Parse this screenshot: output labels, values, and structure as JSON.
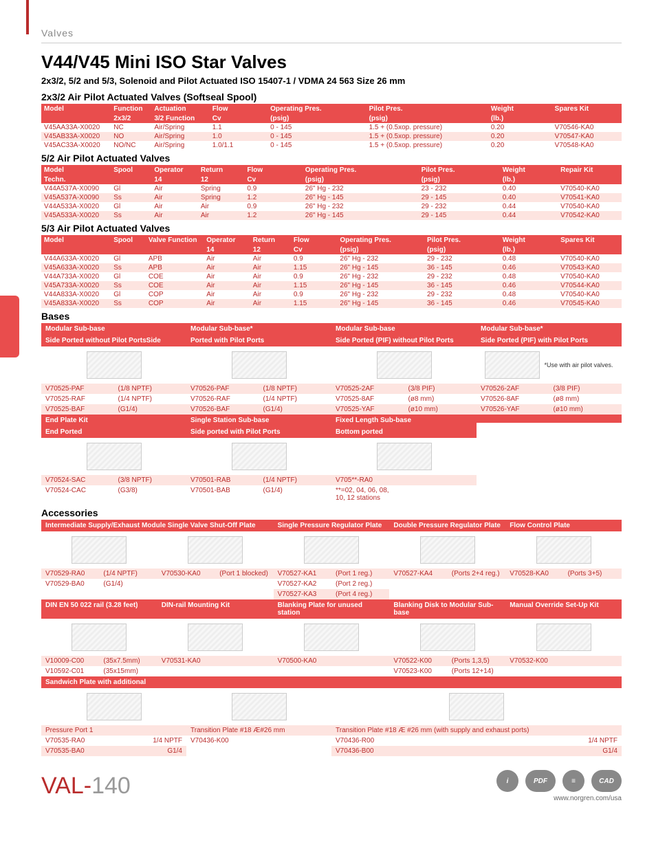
{
  "breadcrumb": "Valves",
  "title": "V44/V45 Mini ISO Star Valves",
  "subtitle": "2x3/2, 5/2 and 5/3, Solenoid and Pilot Actuated ISO 15407-1 / VDMA 24 563 Size 26 mm",
  "sections": {
    "s1": {
      "title": "2x3/2 Air Pilot Actuated Valves (Softseal Spool)",
      "headers1": [
        "Model",
        "Function",
        "Actuation",
        "Flow",
        "Operating Pres.",
        "Pilot Pres.",
        "Weight",
        "Spares Kit"
      ],
      "headers2": [
        "",
        "2x3/2",
        "3/2 Function",
        "Cv",
        "(psig)",
        "(psig)",
        "(lb.)",
        ""
      ],
      "rows": [
        [
          "V45AA33A-X0020",
          "NC",
          "Air/Spring",
          "1.1",
          "0 - 145",
          "1.5 + (0.5xop. pressure)",
          "0.20",
          "V70546-KA0"
        ],
        [
          "V45AB33A-X0020",
          "NO",
          "Air/Spring",
          "1.0",
          "0 - 145",
          "1.5 + (0.5xop. pressure)",
          "0.20",
          "V70547-KA0"
        ],
        [
          "V45AC33A-X0020",
          "NO/NC",
          "Air/Spring",
          "1.0/1.1",
          "0 - 145",
          "1.5 + (0.5xop. pressure)",
          "0.20",
          "V70548-KA0"
        ]
      ],
      "widths": [
        "12%",
        "7%",
        "10%",
        "10%",
        "17%",
        "21%",
        "11%",
        "12%"
      ]
    },
    "s2": {
      "title": "5/2 Air Pilot Actuated Valves",
      "headers1": [
        "Model",
        "Spool",
        "Operator",
        "Return",
        "Flow",
        "Operating Pres.",
        "Pilot Pres.",
        "Weight",
        "Repair Kit"
      ],
      "headers2": [
        "Techn.",
        "",
        "14",
        "12",
        "Cv",
        "(psig)",
        "(psig)",
        "(lb.)",
        ""
      ],
      "rows": [
        [
          "V44A537A-X0090",
          "Gl",
          "Air",
          "Spring",
          "0.9",
          "26\" Hg - 232",
          "23 - 232",
          "0.40",
          "V70540-KA0"
        ],
        [
          "V45A537A-X0090",
          "Ss",
          "Air",
          "Spring",
          "1.2",
          "26\" Hg - 145",
          "29 - 145",
          "0.40",
          "V70541-KA0"
        ],
        [
          "V44A533A-X0020",
          "Gl",
          "Air",
          "Air",
          "0.9",
          "26\" Hg - 232",
          "29 - 232",
          "0.44",
          "V70540-KA0"
        ],
        [
          "V45A533A-X0020",
          "Ss",
          "Air",
          "Air",
          "1.2",
          "26\" Hg - 145",
          "29 - 145",
          "0.44",
          "V70542-KA0"
        ]
      ],
      "widths": [
        "12%",
        "7%",
        "8%",
        "8%",
        "10%",
        "20%",
        "14%",
        "10%",
        "11%"
      ]
    },
    "s3": {
      "title": "5/3 Air Pilot Actuated Valves",
      "headers1": [
        "Model",
        "Spool",
        "Valve Function",
        "Operator",
        "Return",
        "Flow",
        "Operating Pres.",
        "Pilot Pres.",
        "Weight",
        "Spares Kit"
      ],
      "headers2": [
        "",
        "",
        "",
        "14",
        "12",
        "Cv",
        "(psig)",
        "(psig)",
        "(lb.)",
        ""
      ],
      "rows": [
        [
          "V44A633A-X0020",
          "Gl",
          "APB",
          "Air",
          "Air",
          "0.9",
          "26\" Hg - 232",
          "29 - 232",
          "0.48",
          "V70540-KA0"
        ],
        [
          "V45A633A-X0020",
          "Ss",
          "APB",
          "Air",
          "Air",
          "1.15",
          "26\" Hg - 145",
          "36 - 145",
          "0.46",
          "V70543-KA0"
        ],
        [
          "V44A733A-X0020",
          "Gl",
          "COE",
          "Air",
          "Air",
          "0.9",
          "26\" Hg - 232",
          "29 - 232",
          "0.48",
          "V70540-KA0"
        ],
        [
          "V45A733A-X0020",
          "Ss",
          "COE",
          "Air",
          "Air",
          "1.15",
          "26\" Hg - 145",
          "36 - 145",
          "0.46",
          "V70544-KA0"
        ],
        [
          "V44A833A-X0020",
          "Gl",
          "COP",
          "Air",
          "Air",
          "0.9",
          "26\" Hg - 232",
          "29 - 232",
          "0.48",
          "V70540-KA0"
        ],
        [
          "V45A833A-X0020",
          "Ss",
          "COP",
          "Air",
          "Air",
          "1.15",
          "26\" Hg - 145",
          "36 - 145",
          "0.46",
          "V70545-KA0"
        ]
      ],
      "widths": [
        "12%",
        "6%",
        "10%",
        "8%",
        "7%",
        "8%",
        "15%",
        "13%",
        "10%",
        "11%"
      ]
    }
  },
  "bases": {
    "title": "Bases",
    "row1": {
      "cols": [
        {
          "h1": "Modular Sub-base",
          "h2": "Side Ported without Pilot PortsSide",
          "items": [
            [
              "V70525-PAF",
              "(1/8 NPTF)"
            ],
            [
              "V70525-RAF",
              "(1/4 NPTF)"
            ],
            [
              "V70525-BAF",
              "(G1/4)"
            ]
          ]
        },
        {
          "h1": "Modular Sub-base*",
          "h2": "Ported with Pilot Ports",
          "items": [
            [
              "V70526-PAF",
              "(1/8 NPTF)"
            ],
            [
              "V70526-RAF",
              "(1/4 NPTF)"
            ],
            [
              "V70526-BAF",
              "(G1/4)"
            ]
          ]
        },
        {
          "h1": "Modular Sub-base",
          "h2": "Side Ported (PIF) without Pilot Ports",
          "items": [
            [
              "V70525-2AF",
              "(3/8 PIF)"
            ],
            [
              "V70525-8AF",
              "(ø8 mm)"
            ],
            [
              "V70525-YAF",
              "(ø10 mm)"
            ]
          ]
        },
        {
          "h1": "Modular Sub-base*",
          "h2": "Side Ported (PIF) with Pilot Ports",
          "items": [
            [
              "V70526-2AF",
              "(3/8 PIF)"
            ],
            [
              "V70526-8AF",
              "(ø8 mm)"
            ],
            [
              "V70526-YAF",
              "(ø10 mm)"
            ]
          ],
          "note": "*Use with air pilot valves."
        }
      ]
    },
    "row2": {
      "cols": [
        {
          "h1": "End Plate Kit",
          "h2": "End Ported",
          "items": [
            [
              "V70524-SAC",
              "(3/8 NPTF)"
            ],
            [
              "V70524-CAC",
              "(G3/8)"
            ]
          ]
        },
        {
          "h1": "Single Station Sub-base",
          "h2": "Side ported with Pilot Ports",
          "items": [
            [
              "V70501-RAB",
              "(1/4 NPTF)"
            ],
            [
              "V70501-BAB",
              "(G1/4)"
            ]
          ]
        },
        {
          "h1": "Fixed Length Sub-base",
          "h2": "Bottom ported",
          "items": [
            [
              "V705**-RA0",
              ""
            ],
            [
              "**=02, 04, 06, 08, 10, 12 stations",
              ""
            ]
          ]
        },
        {
          "h1": "",
          "h2": "",
          "items": []
        }
      ]
    }
  },
  "accessories": {
    "title": "Accessories",
    "row1": {
      "cols": [
        {
          "h": "Intermediate Supply/Exhaust Module Single Valve Shut-Off Plate",
          "span": 2,
          "groups": [
            {
              "items": [
                [
                  "V70529-RA0",
                  "(1/4 NPTF)"
                ],
                [
                  "V70529-BA0",
                  "(G1/4)"
                ]
              ]
            },
            {
              "items": [
                [
                  "V70530-KA0",
                  "(Port 1 blocked)"
                ]
              ]
            }
          ]
        },
        {
          "h": "Single Pressure Regulator Plate",
          "groups": [
            {
              "items": [
                [
                  "V70527-KA1",
                  "(Port 1 reg.)"
                ],
                [
                  "V70527-KA2",
                  "(Port 2 reg.)"
                ],
                [
                  "V70527-KA3",
                  "(Port 4 reg.)"
                ]
              ]
            }
          ]
        },
        {
          "h": "Double Pressure Regulator Plate",
          "groups": [
            {
              "items": [
                [
                  "V70527-KA4",
                  "(Ports 2+4 reg.)"
                ]
              ]
            }
          ]
        },
        {
          "h": "Flow Control Plate",
          "groups": [
            {
              "items": [
                [
                  "V70528-KA0",
                  "(Ports 3+5)"
                ]
              ]
            }
          ]
        }
      ]
    },
    "row2": {
      "cols": [
        {
          "h": "DIN EN 50 022 rail (3.28 feet)",
          "items": [
            [
              "V10009-C00",
              "(35x7.5mm)"
            ],
            [
              "V10592-C01",
              "(35x15mm)"
            ]
          ]
        },
        {
          "h": "DIN-rail Mounting Kit",
          "items": [
            [
              "V70531-KA0",
              ""
            ]
          ]
        },
        {
          "h": "Blanking Plate for unused station",
          "items": [
            [
              "V70500-KA0",
              ""
            ]
          ]
        },
        {
          "h": "Blanking Disk to Modular Sub-base",
          "items": [
            [
              "V70522-K00",
              "(Ports 1,3,5)"
            ],
            [
              "V70523-K00",
              "(Ports 12+14)"
            ]
          ]
        },
        {
          "h": "Manual Override Set-Up Kit",
          "items": [
            [
              "V70532-K00",
              ""
            ]
          ]
        }
      ]
    },
    "row3": {
      "header": "Sandwich Plate with additional",
      "cols": [
        {
          "h": "Pressure Port 1",
          "items": [
            [
              "V70535-RA0",
              "1/4 NPTF"
            ],
            [
              "V70535-BA0",
              "G1/4"
            ]
          ]
        },
        {
          "h": "Transition Plate #18 Æ#26 mm",
          "items": [
            [
              "V70436-K00",
              ""
            ]
          ]
        },
        {
          "h": "Transition Plate #18 Æ #26 mm (with supply and exhaust ports)",
          "span": 2,
          "items": [
            [
              "V70436-R00",
              "1/4 NPTF"
            ],
            [
              "V70436-B00",
              "G1/4"
            ]
          ]
        }
      ]
    }
  },
  "footer": {
    "page_prefix": "VAL-",
    "page_no": "140",
    "url": "www.norgren.com/usa",
    "icons": [
      "i",
      "PDF",
      "≡",
      "CAD"
    ]
  }
}
